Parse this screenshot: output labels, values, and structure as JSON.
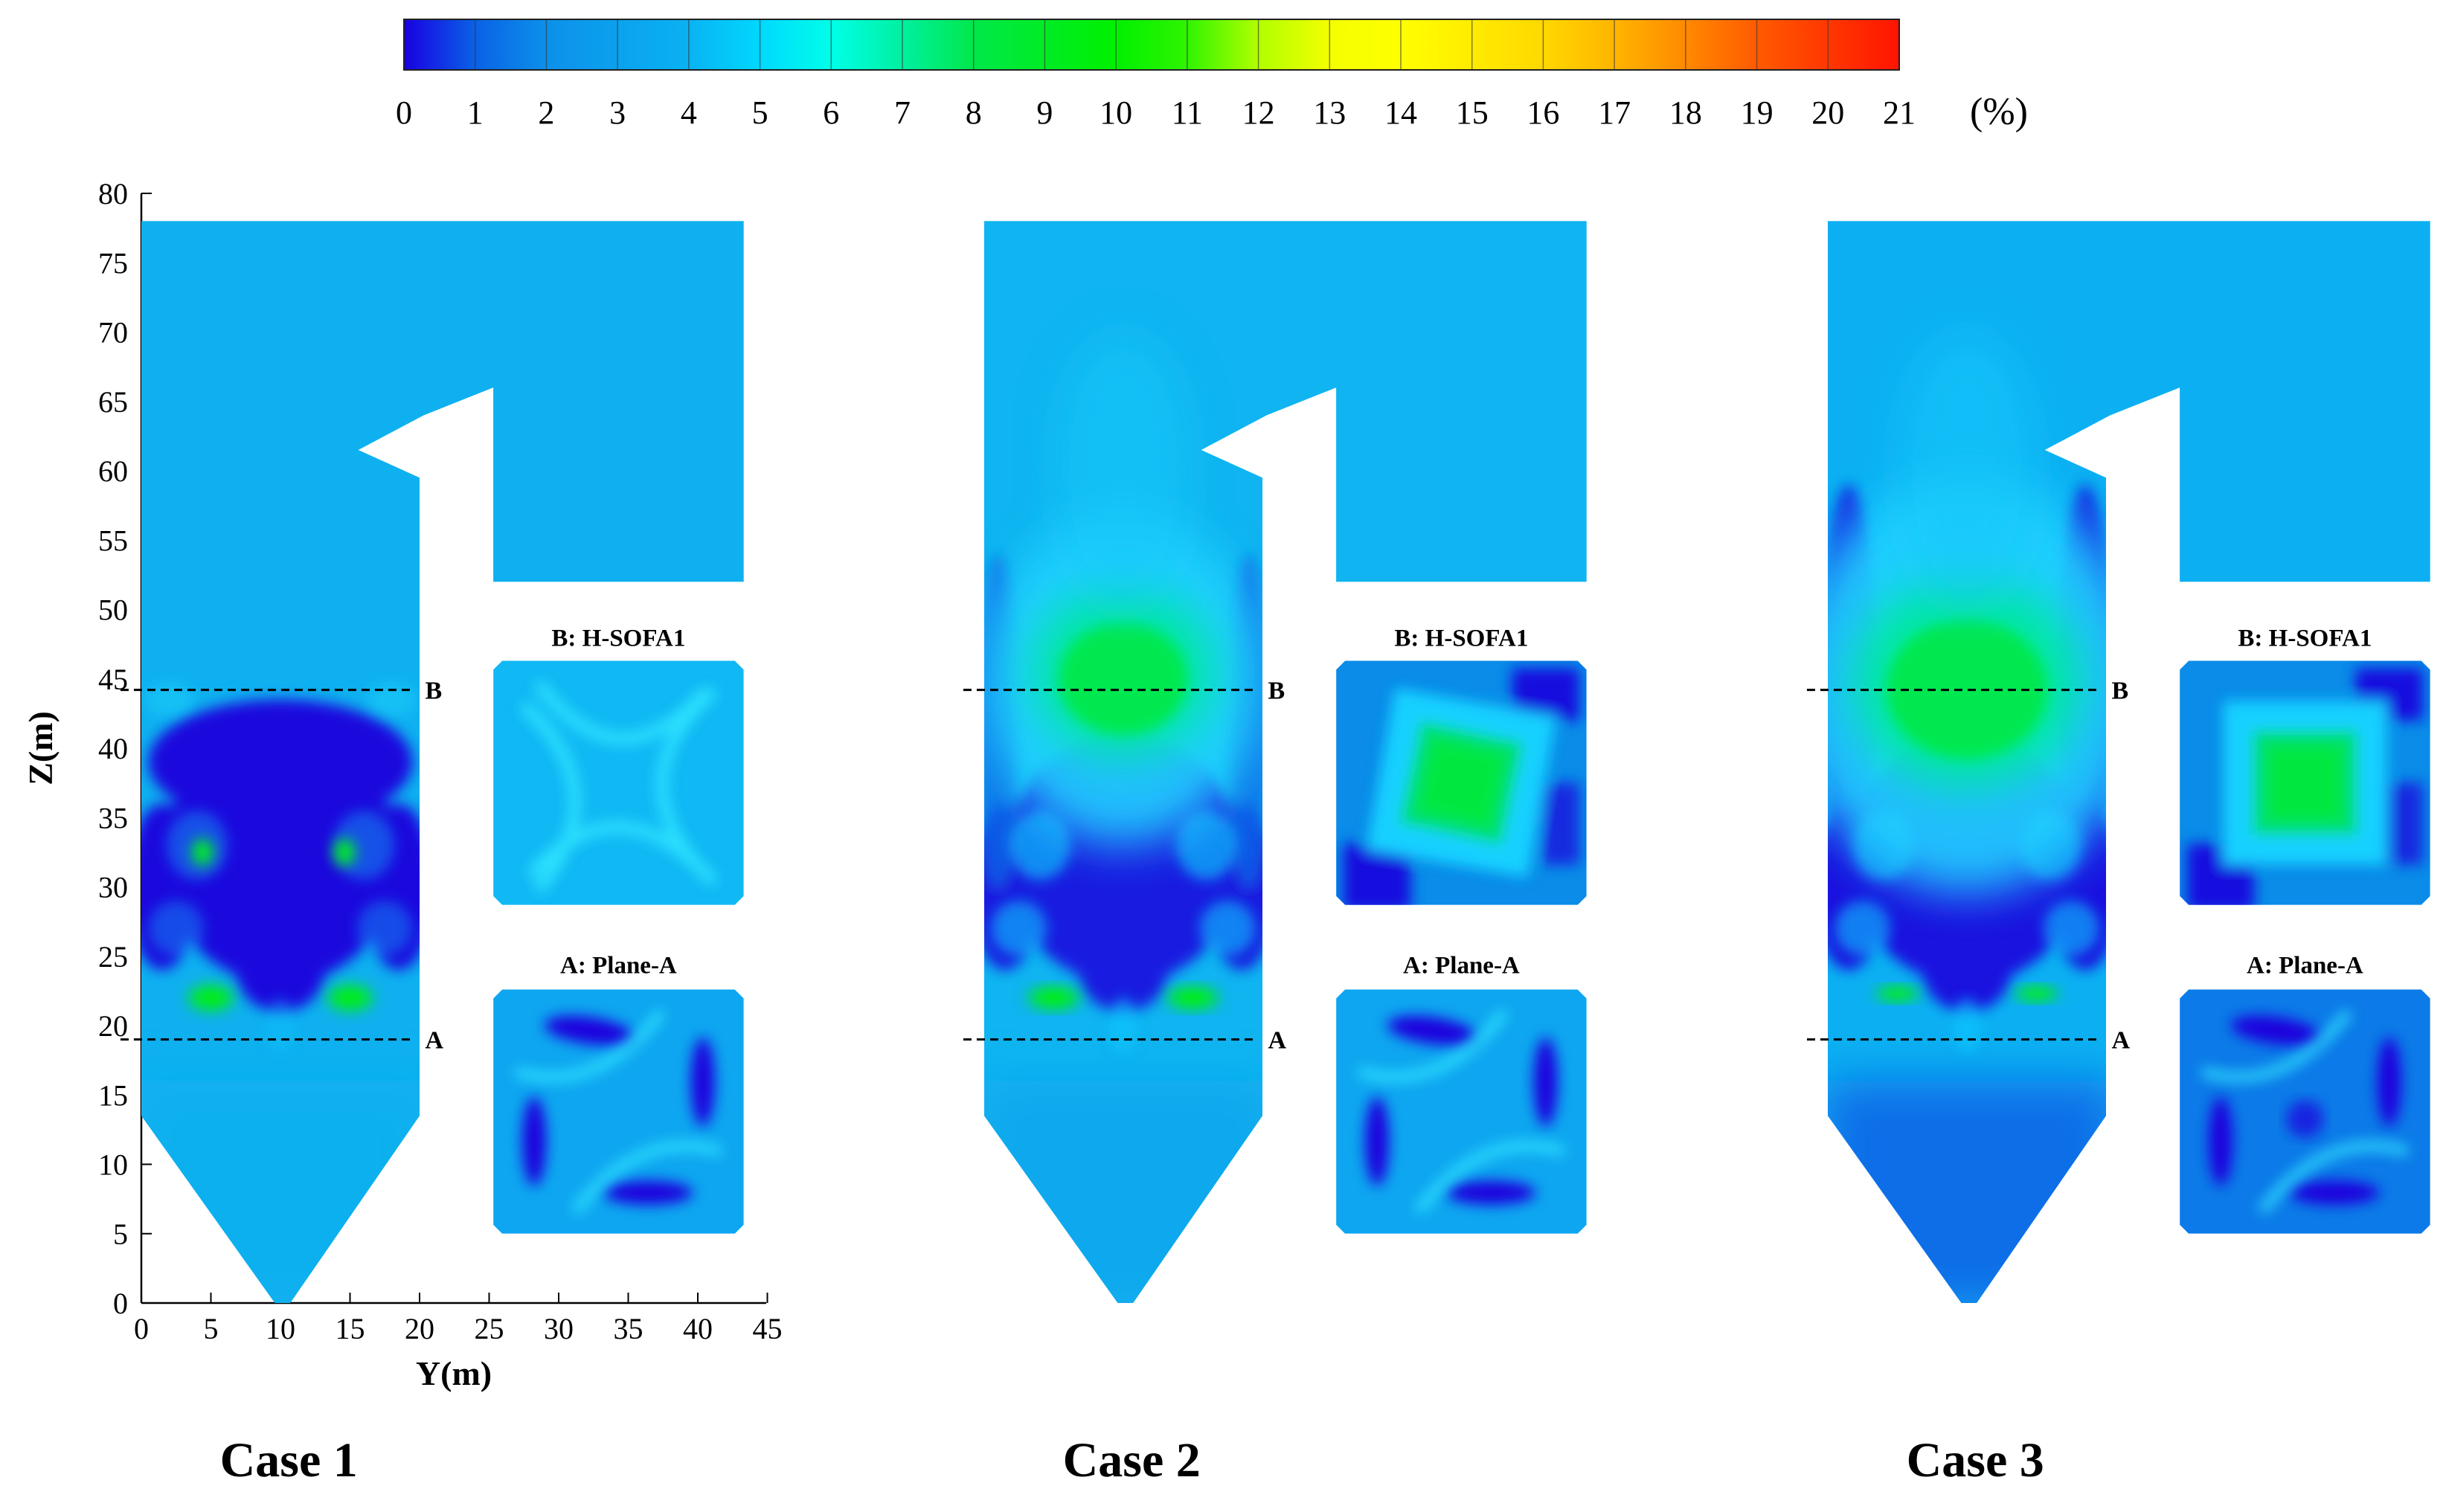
{
  "chart_data": {
    "type": "heatmap",
    "colorbar": {
      "min": 0,
      "max": 21,
      "step": 1,
      "unit": "(%)",
      "colors": [
        "#1a00e0",
        "#0a6ee0",
        "#0ea8ee",
        "#00d2ff",
        "#00ffdc",
        "#00e864",
        "#00f000",
        "#7fff00",
        "#eaff00",
        "#ffff00",
        "#ffd200",
        "#ff9600",
        "#ff5a00",
        "#ff1e00"
      ]
    },
    "axes": {
      "xlabel": "Y(m)",
      "ylabel": "Z(m)",
      "xlim": [
        0,
        45
      ],
      "ylim": [
        0,
        80
      ],
      "xticks": [
        0,
        5,
        10,
        15,
        20,
        25,
        30,
        35,
        40,
        45
      ],
      "yticks": [
        0,
        5,
        10,
        15,
        20,
        25,
        30,
        35,
        40,
        45,
        50,
        55,
        60,
        65,
        70,
        75,
        80
      ]
    },
    "section_lines": [
      {
        "label": "B",
        "z": 44.2
      },
      {
        "label": "A",
        "z": 19.0
      }
    ],
    "cases": [
      {
        "title": "Case 1",
        "planes": [
          {
            "title": "B: H-SOFA1"
          },
          {
            "title": "A: Plane-A"
          }
        ]
      },
      {
        "title": "Case 2",
        "planes": [
          {
            "title": "B: H-SOFA1"
          },
          {
            "title": "A: Plane-A"
          }
        ]
      },
      {
        "title": "Case 3",
        "planes": [
          {
            "title": "B: H-SOFA1"
          },
          {
            "title": "A: Plane-A"
          }
        ]
      }
    ]
  }
}
